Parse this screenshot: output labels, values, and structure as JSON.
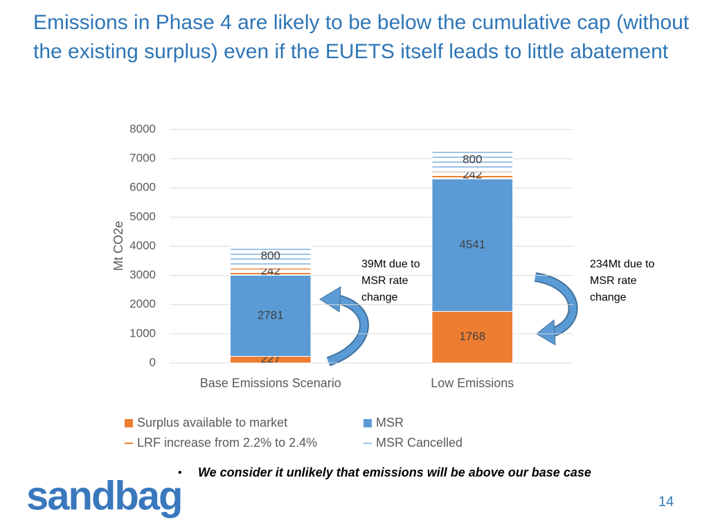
{
  "slide": {
    "title": "Emissions in Phase 4 are likely to be below the cumulative cap (without the existing surplus) even if the EUETS itself leads to little abatement",
    "bullet": "We consider it unlikely that emissions will be above our base case",
    "logo": "sandbag",
    "page_number": "14"
  },
  "chart_data": {
    "type": "stacked_bar",
    "y_label": "Mt CO2e",
    "categories": [
      "Base Emissions Scenario",
      "Low Emissions"
    ],
    "series": [
      {
        "name": "Surplus available to market",
        "color": "#ed7d31",
        "values": [
          227,
          1768
        ]
      },
      {
        "name": "MSR",
        "color": "#5b9bd5",
        "values": [
          2781,
          4541
        ]
      },
      {
        "name": "LRF increase from 2.2% to 2.4%",
        "color": "#ed7d31",
        "hatch": true,
        "values": [
          242,
          242
        ]
      },
      {
        "name": "MSR Cancelled",
        "color": "#9dc3e6",
        "hatch": true,
        "values": [
          800,
          800
        ]
      }
    ],
    "ylim": [
      0,
      8000
    ],
    "yticks": [
      0,
      1000,
      2000,
      3000,
      4000,
      5000,
      6000,
      7000,
      8000
    ],
    "grid": true,
    "annotations": [
      {
        "text": "39Mt due to MSR rate change"
      },
      {
        "text": "234Mt due to MSR rate change"
      }
    ]
  }
}
